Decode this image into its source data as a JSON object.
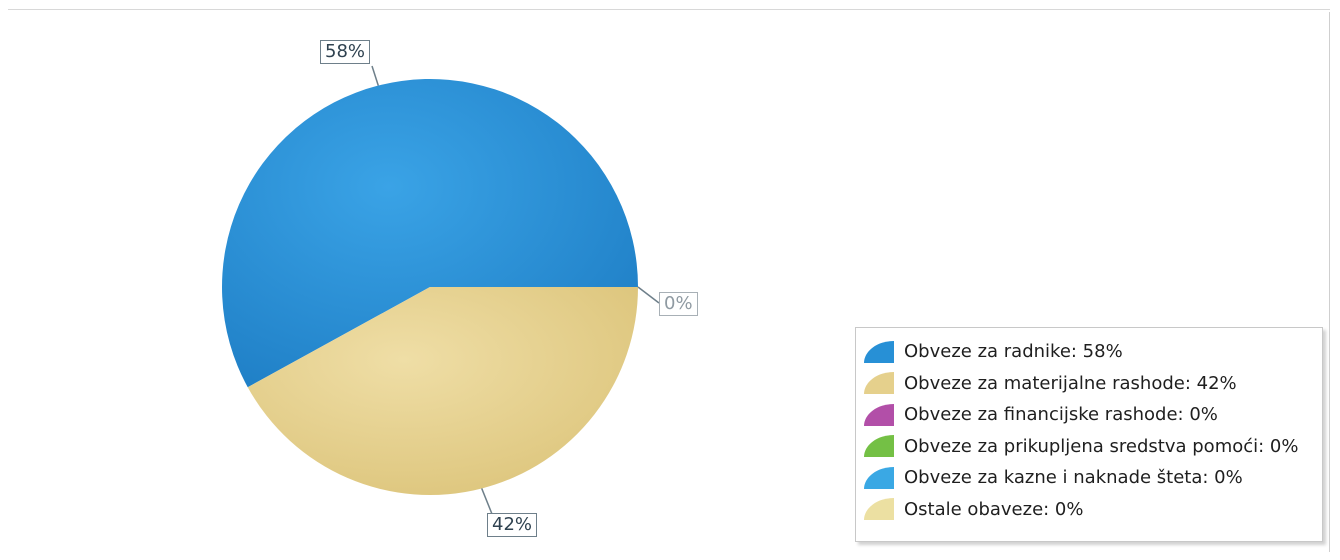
{
  "chart_data": {
    "type": "pie",
    "title": "",
    "legend_position": "bottom-right",
    "slices": [
      {
        "name": "Obveze za radnike",
        "value": 58,
        "color": "#2790d6",
        "label": "58%",
        "legend": "Obveze za radnike: 58%"
      },
      {
        "name": "Obveze za materijalne rashode",
        "value": 42,
        "color": "#e5d08c",
        "label": "42%",
        "legend": "Obveze za materijalne rashode: 42%"
      },
      {
        "name": "Obveze za financijske rashode",
        "value": 0,
        "color": "#b24fa8",
        "label": "0%",
        "legend": "Obveze za financijske rashode: 0%"
      },
      {
        "name": "Obveze za prikupljena sredstva pomoći",
        "value": 0,
        "color": "#74c045",
        "label": "",
        "legend": "Obveze za prikupljena sredstva pomoći: 0%"
      },
      {
        "name": "Obveze za kazne i naknade šteta",
        "value": 0,
        "color": "#3aa8e4",
        "label": "",
        "legend": "Obveze za kazne i naknade šteta: 0%"
      },
      {
        "name": "Ostale obaveze",
        "value": 0,
        "color": "#ece0a2",
        "label": "",
        "legend": "Ostale obaveze: 0%"
      }
    ]
  }
}
